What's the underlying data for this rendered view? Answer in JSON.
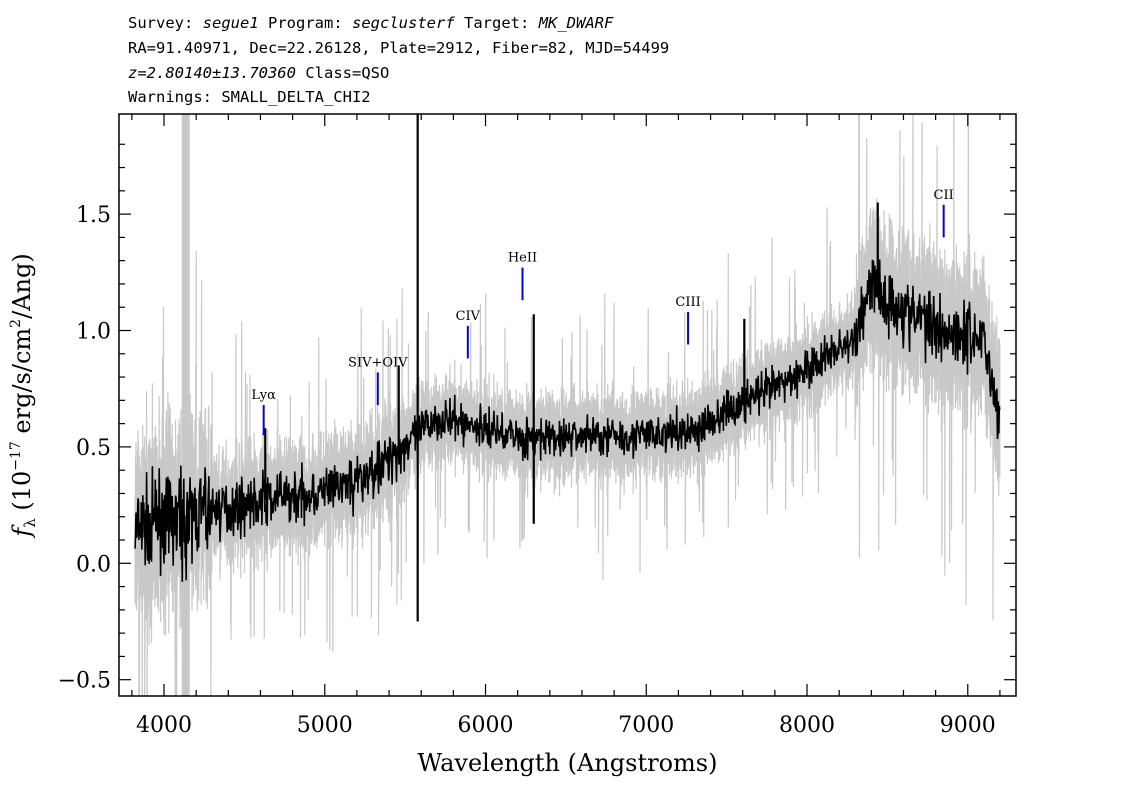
{
  "header": {
    "survey_label": "Survey:",
    "survey": "segue1",
    "program_label": "Program:",
    "program": "segclusterf",
    "target_label": "Target:",
    "target": "MK_DWARF",
    "line2": "RA=91.40971, Dec=22.26128, Plate=2912, Fiber=82, MJD=54499",
    "redshift": "z=2.80140±13.70360",
    "class_text": "Class=QSO",
    "warnings": "Warnings: SMALL_DELTA_CHI2"
  },
  "chart_data": {
    "type": "line",
    "xlabel": "Wavelength (Angstroms)",
    "ylabel": "f_λ (10^-17 erg/s/cm^2/Ang)",
    "xlim": [
      3720,
      9300
    ],
    "ylim": [
      -0.57,
      1.93
    ],
    "xticks": [
      "4000",
      "5000",
      "6000",
      "7000",
      "8000",
      "9000"
    ],
    "yticks": [
      "−0.5",
      "0.0",
      "0.5",
      "1.0",
      "1.5"
    ],
    "masked_band": [
      4110,
      4160
    ],
    "colors": {
      "flux": "#000000",
      "error_band": "#c8c8c8",
      "line_marker": "#0000ee",
      "mask": "#c8c8c8"
    },
    "spectrum_trend": {
      "x": [
        3820,
        3900,
        4000,
        4100,
        4200,
        4400,
        4600,
        4800,
        5000,
        5200,
        5400,
        5500,
        5600,
        5700,
        6000,
        6300,
        6600,
        7000,
        7300,
        7600,
        7900,
        8100,
        8300,
        8400,
        8500,
        8700,
        8900,
        9100,
        9200
      ],
      "y": [
        0.12,
        0.17,
        0.19,
        0.17,
        0.21,
        0.24,
        0.27,
        0.29,
        0.31,
        0.35,
        0.45,
        0.51,
        0.57,
        0.62,
        0.58,
        0.53,
        0.55,
        0.55,
        0.57,
        0.69,
        0.79,
        0.88,
        0.96,
        1.22,
        1.12,
        1.05,
        1.0,
        0.97,
        0.6
      ]
    },
    "spikes": [
      {
        "x": 5578,
        "y": -0.25
      },
      {
        "x": 5578,
        "y": 1.93
      },
      {
        "x": 6300,
        "y": 1.07
      },
      {
        "x": 6300,
        "y": 0.17
      },
      {
        "x": 5460,
        "y": 0.85
      },
      {
        "x": 7610,
        "y": 1.05
      },
      {
        "x": 8440,
        "y": 1.55
      },
      {
        "x": 4630,
        "y": 0.58
      }
    ],
    "emission_lines": [
      {
        "label": "Lyα",
        "x": 4620,
        "y1": 0.55,
        "y2": 0.68
      },
      {
        "label": "SIV+OIV",
        "x": 5330,
        "y1": 0.68,
        "y2": 0.82
      },
      {
        "label": "CIV",
        "x": 5890,
        "y1": 0.88,
        "y2": 1.02
      },
      {
        "label": "HeII",
        "x": 6230,
        "y1": 1.13,
        "y2": 1.27
      },
      {
        "label": "CIII",
        "x": 7260,
        "y1": 0.94,
        "y2": 1.08
      },
      {
        "label": "CII",
        "x": 8850,
        "y1": 1.4,
        "y2": 1.54
      }
    ]
  }
}
